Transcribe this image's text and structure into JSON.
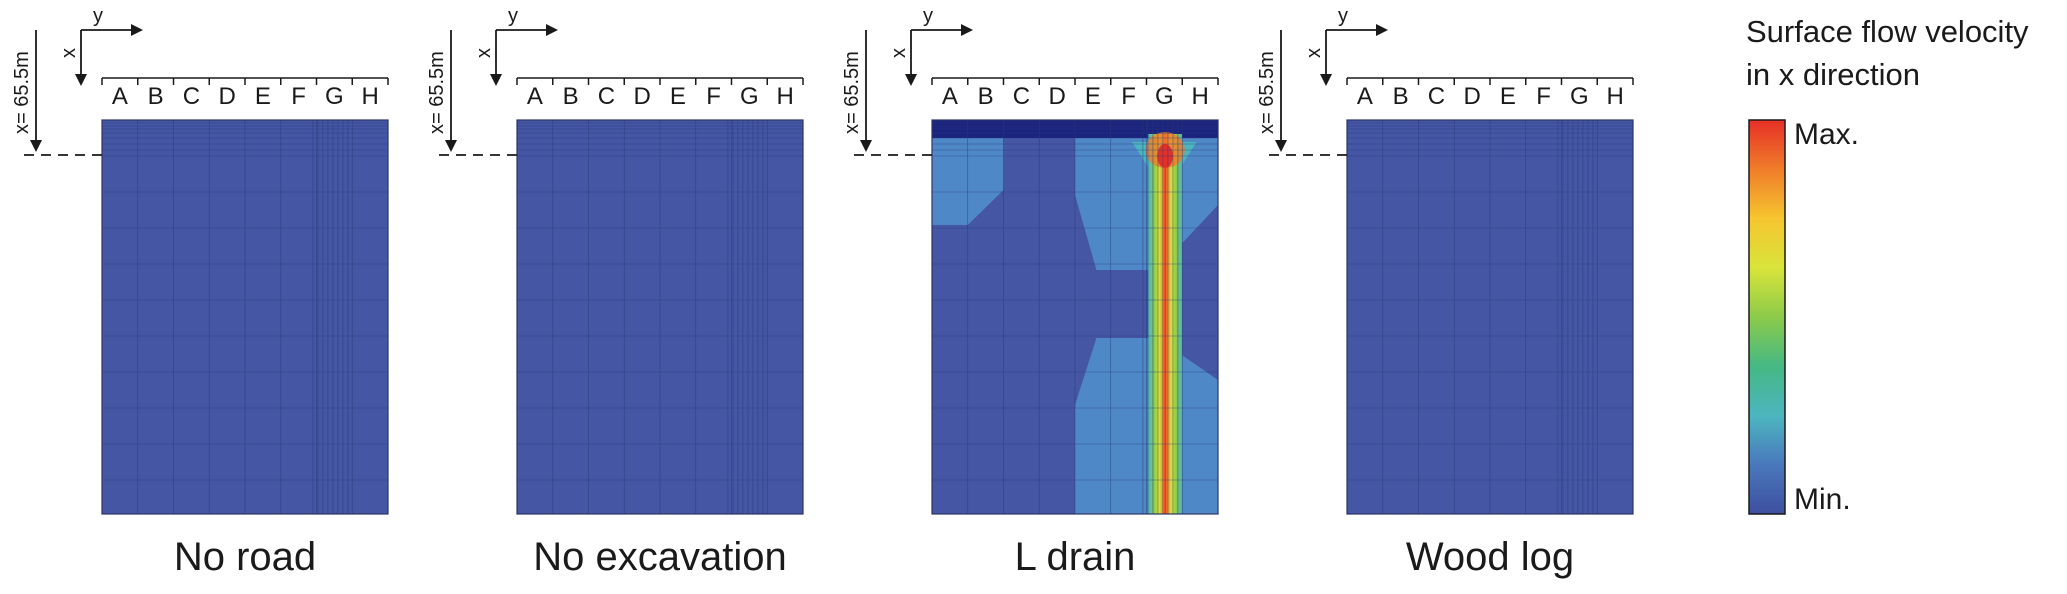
{
  "panels": [
    {
      "title": "No road",
      "scenario": "uniform"
    },
    {
      "title": "No excavation",
      "scenario": "uniform"
    },
    {
      "title": "L drain",
      "scenario": "drain"
    },
    {
      "title": "Wood log",
      "scenario": "uniform"
    }
  ],
  "columns": [
    "A",
    "B",
    "C",
    "D",
    "E",
    "F",
    "G",
    "H"
  ],
  "axes": {
    "x_label": "x",
    "y_label": "y",
    "depth_label": "x= 65.5m"
  },
  "legend": {
    "title_line1": "Surface flow velocity",
    "title_line2": "in x direction",
    "max_label": "Max.",
    "min_label": "Min.",
    "colors": [
      "#e63027",
      "#f07d2a",
      "#f6c52f",
      "#d9e43a",
      "#8ccb4a",
      "#45b884",
      "#4cb6bf",
      "#4a78bd",
      "#3d4f9e"
    ]
  },
  "colors": {
    "field_low": "#4456a4",
    "field_light": "#4f88c6",
    "field_top": "#1a237e",
    "grid": "#2a3a7a"
  }
}
